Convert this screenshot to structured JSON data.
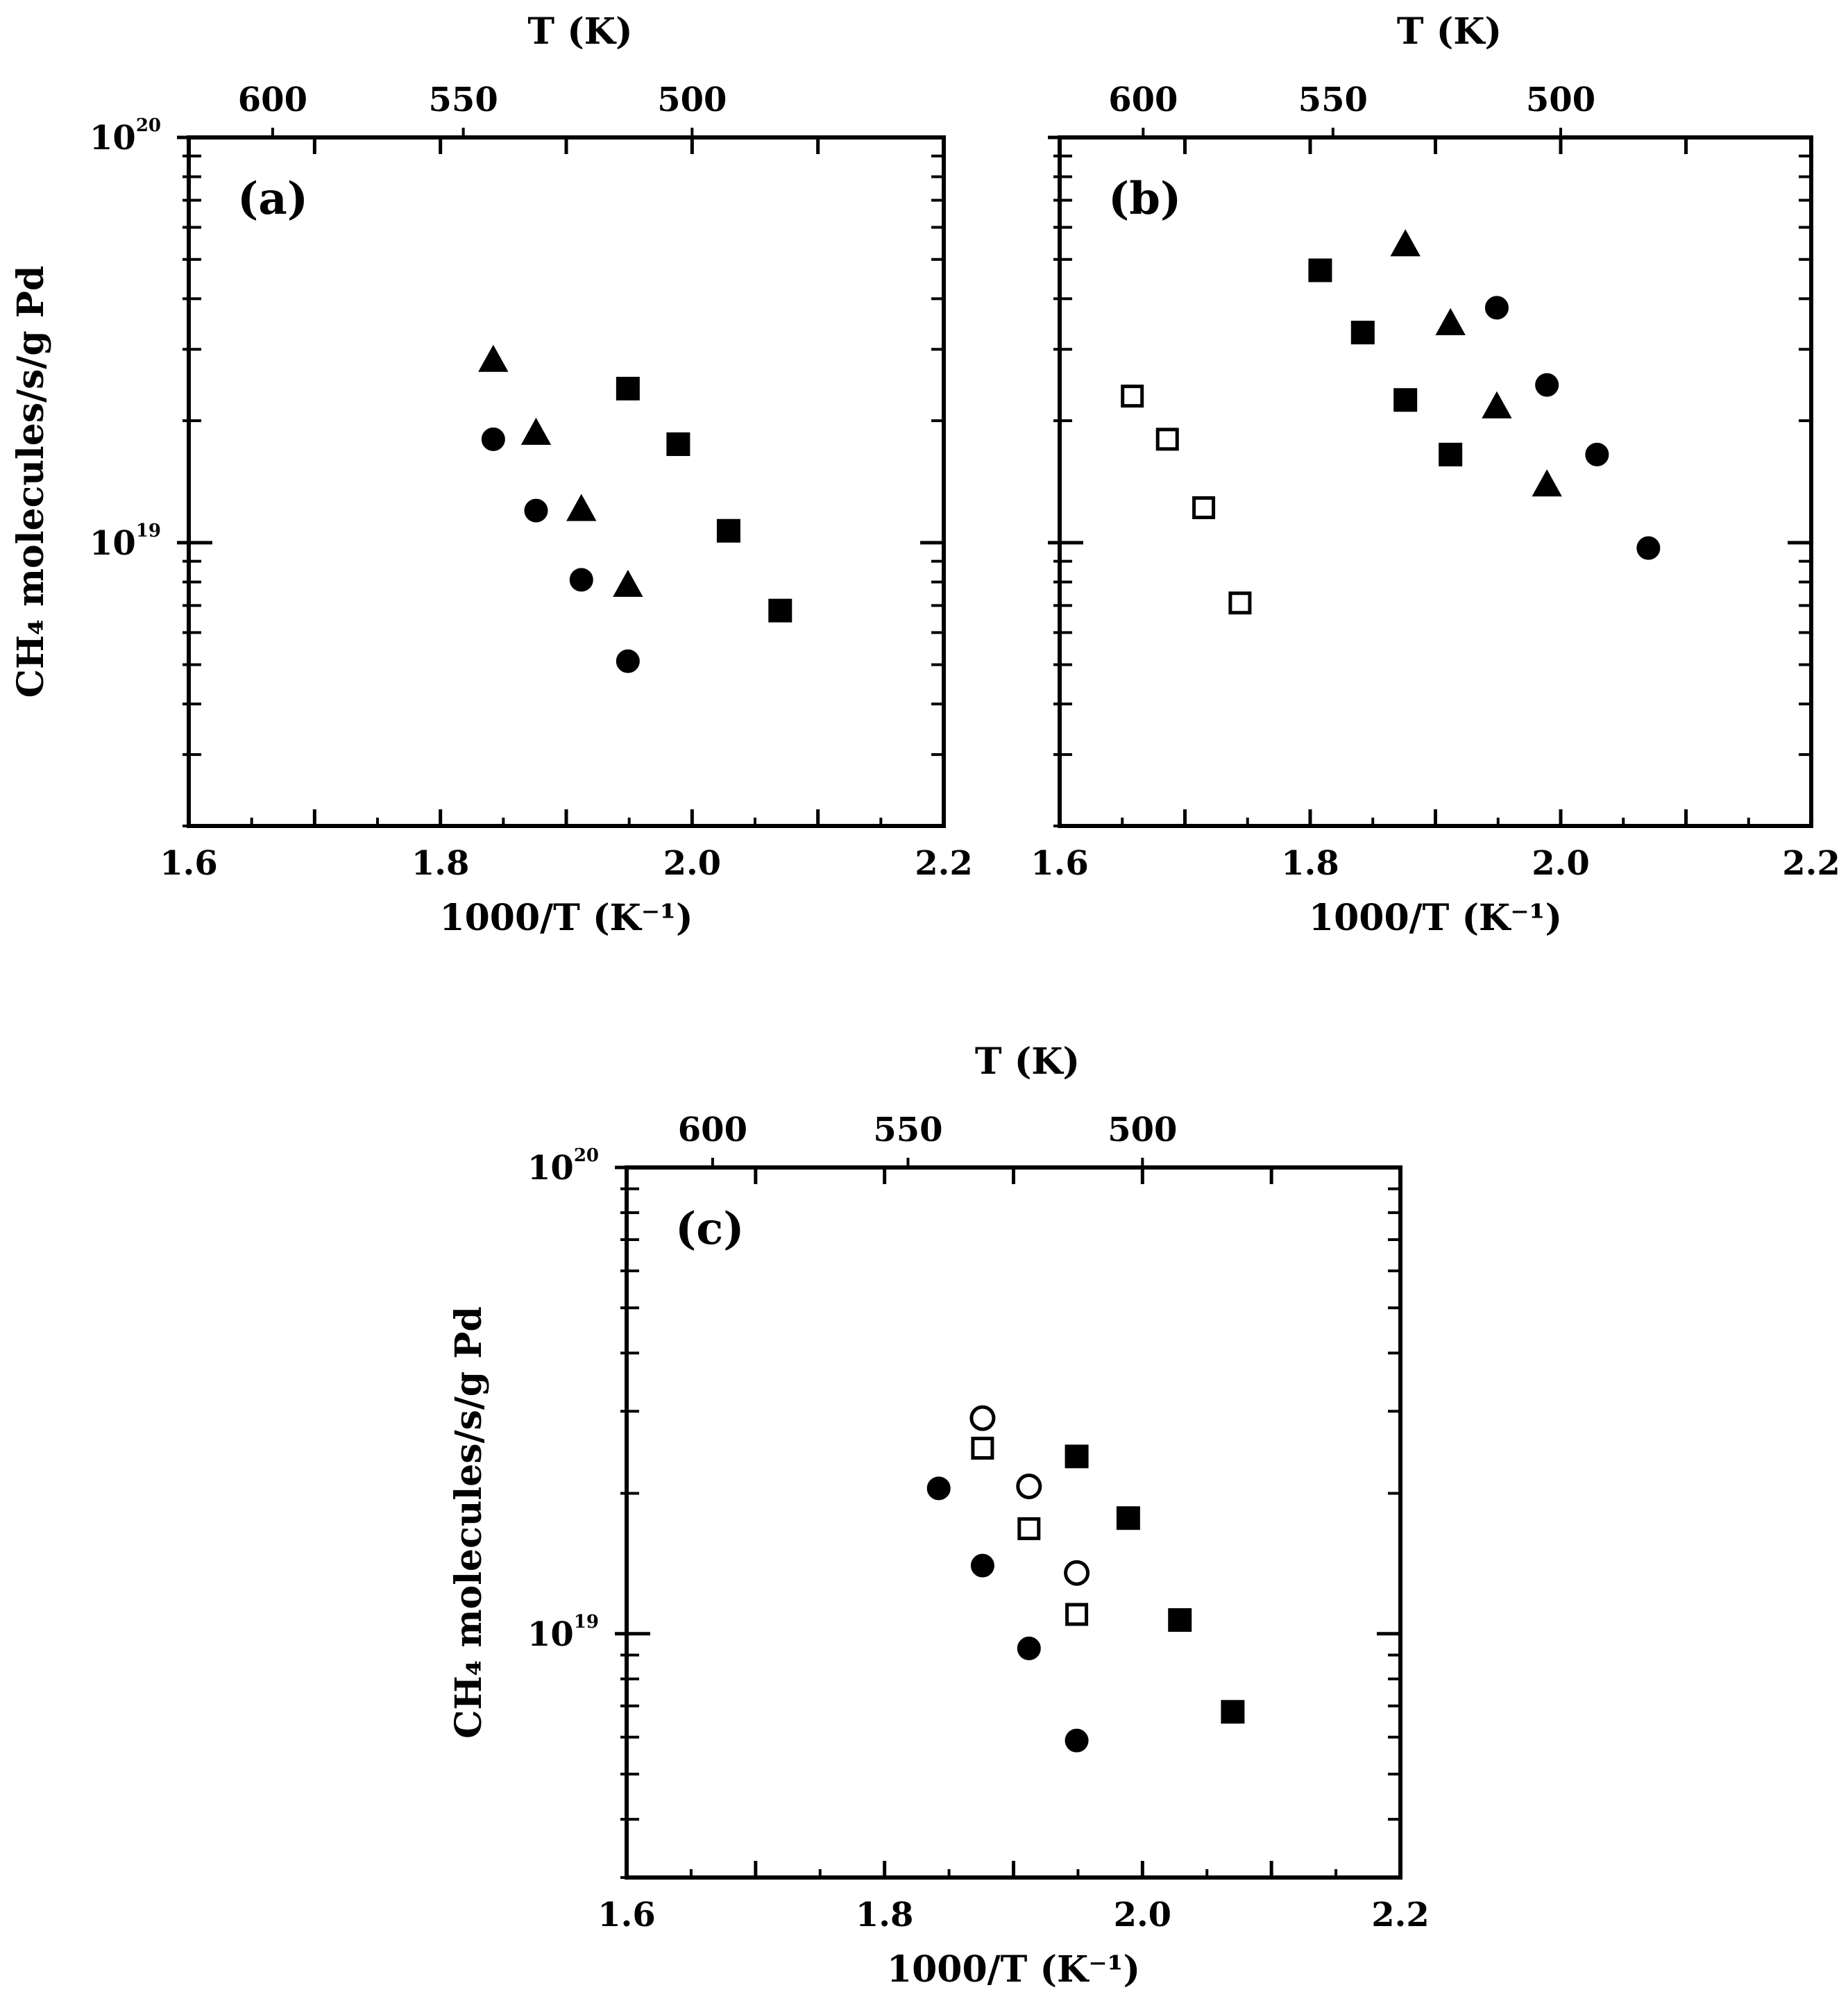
{
  "chart_data": [
    {
      "type": "scatter",
      "panel": "(a)",
      "xlabel": "1000/T (K⁻¹)",
      "top_xlabel": "T (K)",
      "ylabel": "CH₄ molecules/s/g Pd",
      "xlim": [
        1.6,
        2.2
      ],
      "ylim": [
        2e+18,
        1e+20
      ],
      "yscale": "log",
      "x_ticks": [
        "1.6",
        "1.8",
        "2.0",
        "2.2"
      ],
      "y_ticks": [
        {
          "base": "10",
          "exp": "19",
          "value": 1e+19
        },
        {
          "base": "10",
          "exp": "20",
          "value": 1e+20
        }
      ],
      "top_ticks": [
        "600",
        "550",
        "500"
      ],
      "series": [
        {
          "name": "triangle-filled",
          "marker": "triangle",
          "filled": true,
          "x": [
            1.842,
            1.876,
            1.912,
            1.949
          ],
          "y": [
            2.8e+19,
            1.85e+19,
            1.2e+19,
            7.8e+18
          ]
        },
        {
          "name": "circle-filled",
          "marker": "circle",
          "filled": true,
          "x": [
            1.842,
            1.876,
            1.912,
            1.949
          ],
          "y": [
            1.8e+19,
            1.2e+19,
            8.1e+18,
            5.1e+18
          ]
        },
        {
          "name": "square-filled",
          "marker": "square",
          "filled": true,
          "x": [
            1.949,
            1.989,
            2.029,
            2.07
          ],
          "y": [
            2.4e+19,
            1.75e+19,
            1.07e+19,
            6.8e+18
          ]
        }
      ]
    },
    {
      "type": "scatter",
      "panel": "(b)",
      "xlabel": "1000/T (K⁻¹)",
      "top_xlabel": "T (K)",
      "ylabel": "",
      "xlim": [
        1.6,
        2.2
      ],
      "ylim": [
        2e+18,
        1e+20
      ],
      "yscale": "log",
      "x_ticks": [
        "1.6",
        "1.8",
        "2.0",
        "2.2"
      ],
      "y_ticks": [],
      "top_ticks": [
        "600",
        "550",
        "500"
      ],
      "series": [
        {
          "name": "square-open",
          "marker": "square",
          "filled": false,
          "x": [
            1.658,
            1.686,
            1.715,
            1.744
          ],
          "y": [
            2.3e+19,
            1.8e+19,
            1.22e+19,
            7.1e+18
          ]
        },
        {
          "name": "square-filled",
          "marker": "square",
          "filled": true,
          "x": [
            1.808,
            1.842,
            1.876,
            1.912
          ],
          "y": [
            4.7e+19,
            3.3e+19,
            2.25e+19,
            1.65e+19
          ]
        },
        {
          "name": "triangle-filled",
          "marker": "triangle",
          "filled": true,
          "x": [
            1.876,
            1.912,
            1.949,
            1.989
          ],
          "y": [
            5.4e+19,
            3.45e+19,
            2.15e+19,
            1.38e+19
          ]
        },
        {
          "name": "circle-filled",
          "marker": "circle",
          "filled": true,
          "x": [
            1.949,
            1.989,
            2.029,
            2.07
          ],
          "y": [
            3.8e+19,
            2.45e+19,
            1.65e+19,
            9.7e+18
          ]
        }
      ]
    },
    {
      "type": "scatter",
      "panel": "(c)",
      "xlabel": "1000/T (K⁻¹)",
      "top_xlabel": "T (K)",
      "ylabel": "CH₄ molecules/s/g Pd",
      "xlim": [
        1.6,
        2.2
      ],
      "ylim": [
        3e+18,
        1e+20
      ],
      "yscale": "log",
      "x_ticks": [
        "1.6",
        "1.8",
        "2.0",
        "2.2"
      ],
      "y_ticks": [
        {
          "base": "10",
          "exp": "19",
          "value": 1e+19
        },
        {
          "base": "10",
          "exp": "20",
          "value": 1e+20
        }
      ],
      "top_ticks": [
        "600",
        "550",
        "500"
      ],
      "series": [
        {
          "name": "circle-filled",
          "marker": "circle",
          "filled": true,
          "x": [
            1.842,
            1.876,
            1.912,
            1.949
          ],
          "y": [
            2.05e+19,
            1.4e+19,
            9.3e+18,
            5.9e+18
          ]
        },
        {
          "name": "circle-open",
          "marker": "circle",
          "filled": false,
          "x": [
            1.876,
            1.912,
            1.949
          ],
          "y": [
            2.9e+19,
            2.07e+19,
            1.35e+19
          ]
        },
        {
          "name": "square-open",
          "marker": "square",
          "filled": false,
          "x": [
            1.876,
            1.912,
            1.949
          ],
          "y": [
            2.5e+19,
            1.68e+19,
            1.1e+19
          ]
        },
        {
          "name": "square-filled",
          "marker": "square",
          "filled": true,
          "x": [
            1.949,
            1.989,
            2.029,
            2.07
          ],
          "y": [
            2.4e+19,
            1.77e+19,
            1.07e+19,
            6.8e+18
          ]
        }
      ]
    }
  ]
}
